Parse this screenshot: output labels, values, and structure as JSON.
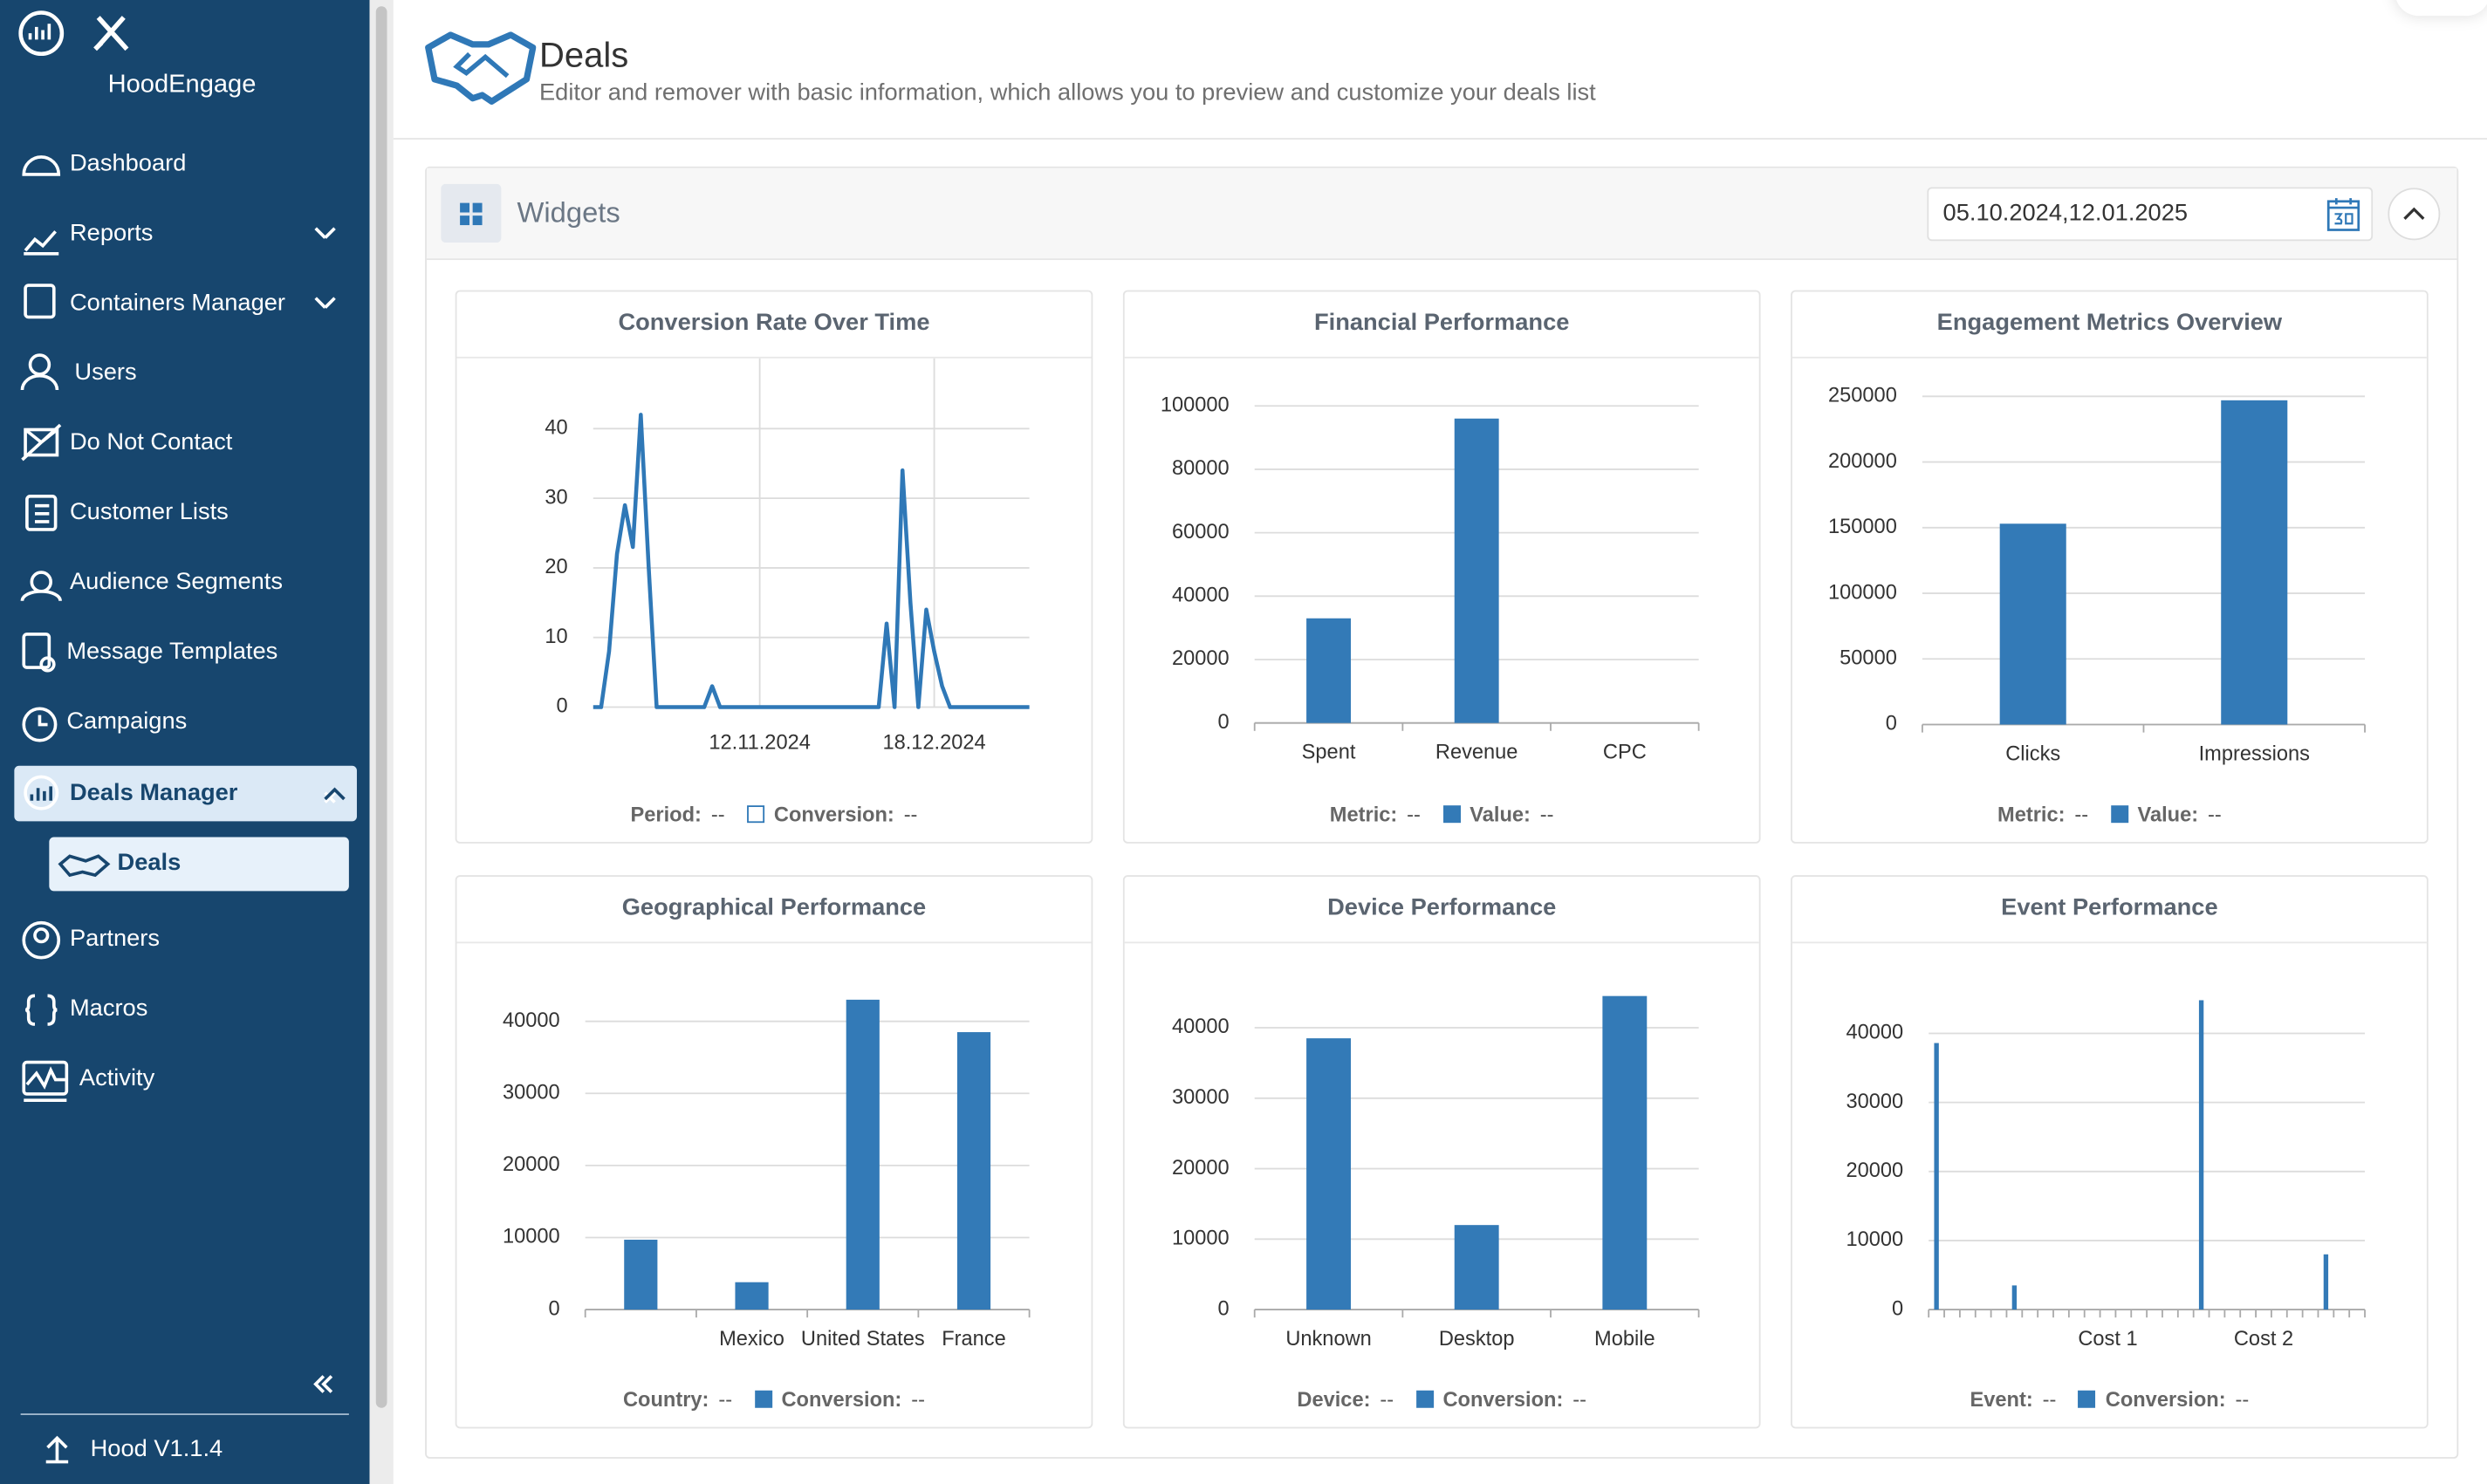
{
  "sidebar": {
    "brand": "HoodEngage",
    "items": [
      "Dashboard",
      "Reports",
      "Containers Manager",
      "Users",
      "Do Not Contact",
      "Customer Lists",
      "Audience Segments",
      "Message Templates",
      "Campaigns",
      "Deals Manager"
    ],
    "subitem": "Deals",
    "items_after": [
      "Partners",
      "Macros",
      "Activity"
    ],
    "version": "Hood V1.1.4"
  },
  "header": {
    "title": "Deals",
    "subtitle": "Editor and remover with basic information, which allows you to preview and customize your deals list"
  },
  "widgets": {
    "title": "Widgets",
    "date_range": "05.10.2024,12.01.2025"
  },
  "chart_data": [
    {
      "type": "line",
      "title": "Conversion Rate Over Time",
      "categories": [
        null,
        null,
        null,
        null,
        null,
        null,
        null,
        null,
        null,
        null,
        null,
        null,
        null,
        null,
        null,
        null,
        null,
        null,
        null,
        null,
        null,
        "12.11.2024",
        null,
        null,
        null,
        null,
        null,
        null,
        null,
        null,
        null,
        null,
        null,
        null,
        null,
        null,
        null,
        null,
        null,
        null,
        null,
        null,
        null,
        "18.12.2024",
        null,
        null,
        null,
        null,
        null,
        null,
        null,
        null,
        null,
        null,
        null,
        null
      ],
      "series": [
        {
          "name": "Conversion:",
          "legend_value": "--",
          "color": "#2f78b7",
          "values": [
            0,
            0,
            8,
            22,
            29,
            23,
            42,
            20,
            0,
            0,
            0,
            0,
            0,
            0,
            0,
            3,
            0,
            0,
            0,
            0,
            0,
            0,
            0,
            0,
            0,
            0,
            0,
            0,
            0,
            0,
            0,
            0,
            0,
            0,
            0,
            0,
            0,
            12,
            0,
            34,
            15,
            0,
            14,
            8,
            3,
            0,
            0,
            0,
            0,
            0,
            0,
            0,
            0,
            0,
            0,
            0
          ]
        }
      ],
      "legend_key": {
        "name": "Period:",
        "value": "--"
      },
      "ylim": [
        0,
        46
      ],
      "yticks": [
        0,
        10,
        20,
        30,
        40
      ],
      "grid": true,
      "xgrid": true
    },
    {
      "type": "bar",
      "title": "Financial Performance",
      "categories": [
        "Spent",
        "Revenue",
        "CPC"
      ],
      "series": [
        {
          "name": "Value:",
          "legend_value": "--",
          "color": "#337ab7",
          "values": [
            33000,
            96000,
            0
          ]
        }
      ],
      "legend_key": {
        "name": "Metric:",
        "value": "--"
      },
      "ylim": [
        0,
        100000
      ],
      "yticks": [
        0,
        20000,
        40000,
        60000,
        80000,
        100000
      ],
      "grid": true
    },
    {
      "type": "bar",
      "title": "Engagement Metrics Overview",
      "categories": [
        "Clicks",
        "Impressions"
      ],
      "series": [
        {
          "name": "Value:",
          "legend_value": "--",
          "color": "#337ab7",
          "values": [
            153000,
            247000
          ]
        }
      ],
      "legend_key": {
        "name": "Metric:",
        "value": "--"
      },
      "ylim": [
        0,
        250000
      ],
      "yticks": [
        0,
        50000,
        100000,
        150000,
        200000,
        250000
      ],
      "grid": true
    },
    {
      "type": "bar",
      "title": "Geographical Performance",
      "categories": [
        null,
        "Mexico",
        "United States",
        "France"
      ],
      "series": [
        {
          "name": "Conversion:",
          "legend_value": "--",
          "color": "#337ab7",
          "values": [
            9700,
            3800,
            43000,
            38500
          ]
        }
      ],
      "legend_key": {
        "name": "Country:",
        "value": "--"
      },
      "ylim": [
        0,
        44000
      ],
      "yticks": [
        0,
        10000,
        20000,
        30000,
        40000
      ],
      "grid": true
    },
    {
      "type": "bar",
      "title": "Device Performance",
      "categories": [
        "Unknown",
        "Desktop",
        "Mobile"
      ],
      "series": [
        {
          "name": "Conversion:",
          "legend_value": "--",
          "color": "#337ab7",
          "values": [
            38500,
            12000,
            44500
          ]
        }
      ],
      "legend_key": {
        "name": "Device:",
        "value": "--"
      },
      "ylim": [
        0,
        45000
      ],
      "yticks": [
        0,
        10000,
        20000,
        30000,
        40000
      ],
      "grid": true
    },
    {
      "type": "bar",
      "title": "Event Performance",
      "categories": [
        null,
        null,
        null,
        null,
        null,
        null,
        null,
        null,
        null,
        null,
        null,
        "Cost 1",
        null,
        null,
        null,
        null,
        null,
        null,
        null,
        null,
        null,
        "Cost 2",
        null,
        null,
        null,
        null,
        null,
        null
      ],
      "series": [
        {
          "name": "Conversion:",
          "legend_value": "--",
          "color": "#337ab7",
          "values": [
            38600,
            0,
            0,
            0,
            0,
            3500,
            0,
            0,
            0,
            0,
            0,
            0,
            0,
            0,
            0,
            0,
            0,
            44800,
            0,
            0,
            0,
            0,
            0,
            0,
            0,
            8000,
            0,
            0
          ]
        }
      ],
      "legend_key": {
        "name": "Event:",
        "value": "--"
      },
      "ylim": [
        0,
        45000
      ],
      "yticks": [
        0,
        10000,
        20000,
        30000,
        40000
      ],
      "grid": true
    }
  ]
}
